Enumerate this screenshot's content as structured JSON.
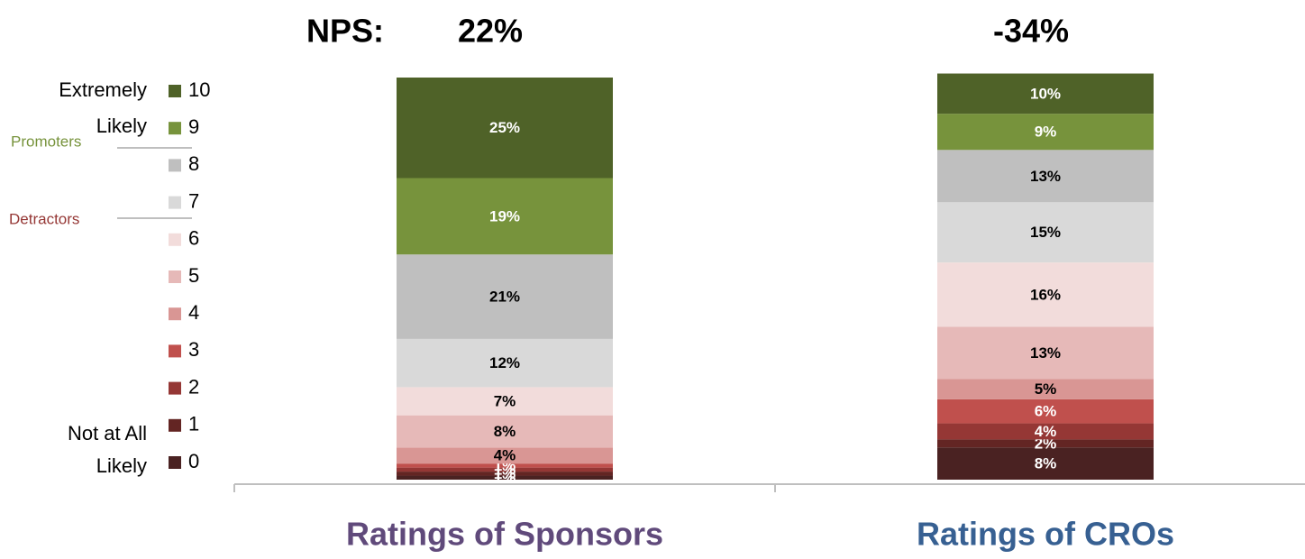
{
  "chart_data": {
    "type": "stacked_bar",
    "nps_title": "NPS:",
    "nps_labels": [
      "22%",
      "-34%"
    ],
    "categories": [
      "Ratings of Sponsors",
      "Ratings of CROs"
    ],
    "category_colors": [
      "#604a7b",
      "#376092"
    ],
    "ylim": [
      0,
      100
    ],
    "legend_labels": {
      "top": "Extremely Likely",
      "bottom": "Not at All Likely",
      "promoters": "Promoters",
      "detractors": "Detractors"
    },
    "series": [
      {
        "name": "0",
        "color": "#4a2222",
        "label_color": "#ffffff",
        "values": [
          1,
          8
        ],
        "value_labels": [
          "1%",
          "8%"
        ]
      },
      {
        "name": "1",
        "color": "#632523",
        "label_color": "#ffffff",
        "values": [
          1,
          2
        ],
        "value_labels": [
          "1%",
          "2%"
        ]
      },
      {
        "name": "2",
        "color": "#953735",
        "label_color": "#ffffff",
        "values": [
          1,
          4
        ],
        "value_labels": [
          "1%",
          "4%"
        ]
      },
      {
        "name": "3",
        "color": "#c0504d",
        "label_color": "#ffffff",
        "values": [
          1,
          6
        ],
        "value_labels": [
          "1%",
          "6%"
        ]
      },
      {
        "name": "4",
        "color": "#d99694",
        "label_color": "#000000",
        "values": [
          4,
          5
        ],
        "value_labels": [
          "4%",
          "5%"
        ]
      },
      {
        "name": "5",
        "color": "#e6b9b8",
        "label_color": "#000000",
        "values": [
          8,
          13
        ],
        "value_labels": [
          "8%",
          "13%"
        ]
      },
      {
        "name": "6",
        "color": "#f2dcdb",
        "label_color": "#000000",
        "values": [
          7,
          16
        ],
        "value_labels": [
          "7%",
          "16%"
        ]
      },
      {
        "name": "7",
        "color": "#d9d9d9",
        "label_color": "#000000",
        "values": [
          12,
          15
        ],
        "value_labels": [
          "12%",
          "15%"
        ]
      },
      {
        "name": "8",
        "color": "#bfbfbf",
        "label_color": "#000000",
        "values": [
          21,
          13
        ],
        "value_labels": [
          "21%",
          "13%"
        ]
      },
      {
        "name": "9",
        "color": "#77933c",
        "label_color": "#ffffff",
        "values": [
          19,
          9
        ],
        "value_labels": [
          "19%",
          "9%"
        ]
      },
      {
        "name": "10",
        "color": "#4f6228",
        "label_color": "#ffffff",
        "values": [
          25,
          10
        ],
        "value_labels": [
          "25%",
          "10%"
        ]
      }
    ]
  }
}
